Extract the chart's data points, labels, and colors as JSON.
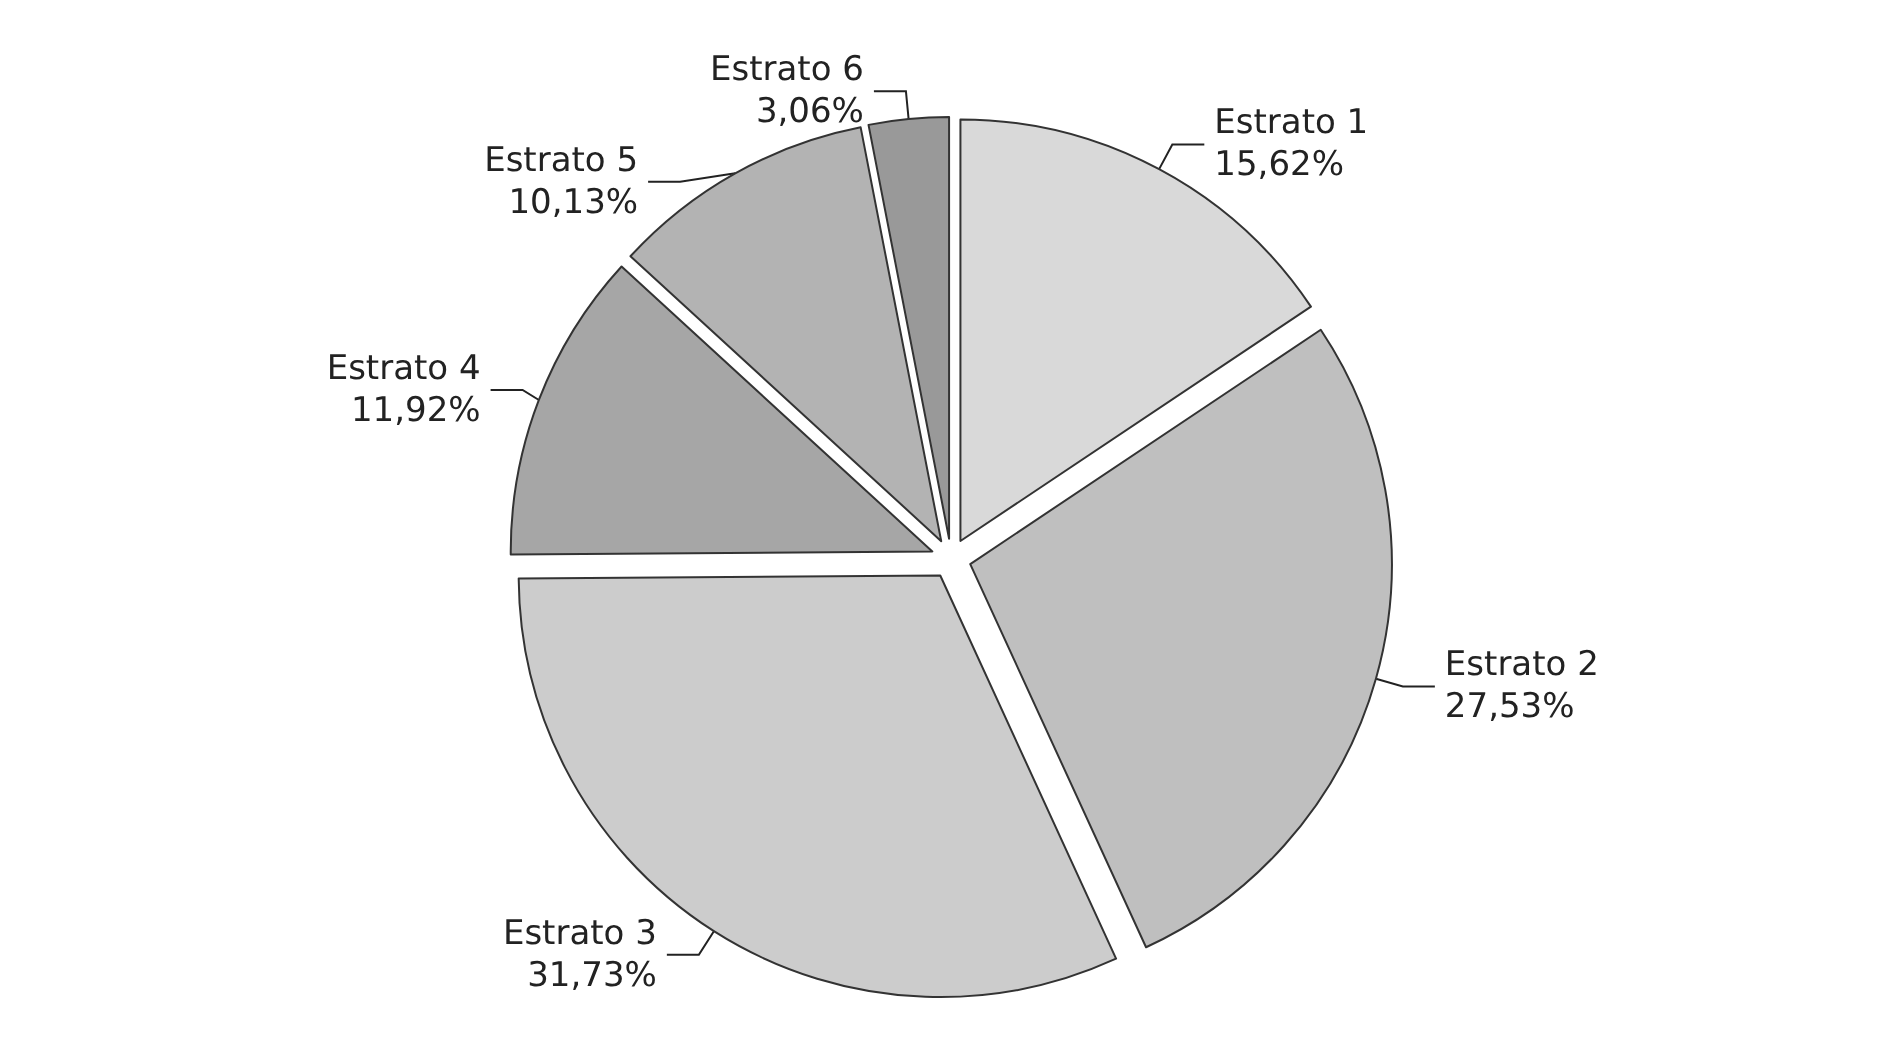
{
  "chart_data": {
    "type": "pie",
    "categories": [
      "Estrato 1",
      "Estrato 2",
      "Estrato 3",
      "Estrato 4",
      "Estrato 5",
      "Estrato 6"
    ],
    "values": [
      15.62,
      27.53,
      31.73,
      11.92,
      10.13,
      3.06
    ],
    "value_labels": [
      "15,62%",
      "27,53%",
      "31,73%",
      "11,92%",
      "10,13%",
      "3,06%"
    ],
    "colors": [
      "#d9d9d9",
      "#bfbfbf",
      "#cccccc",
      "#a6a6a6",
      "#b3b3b3",
      "#999999"
    ],
    "legend": false
  }
}
